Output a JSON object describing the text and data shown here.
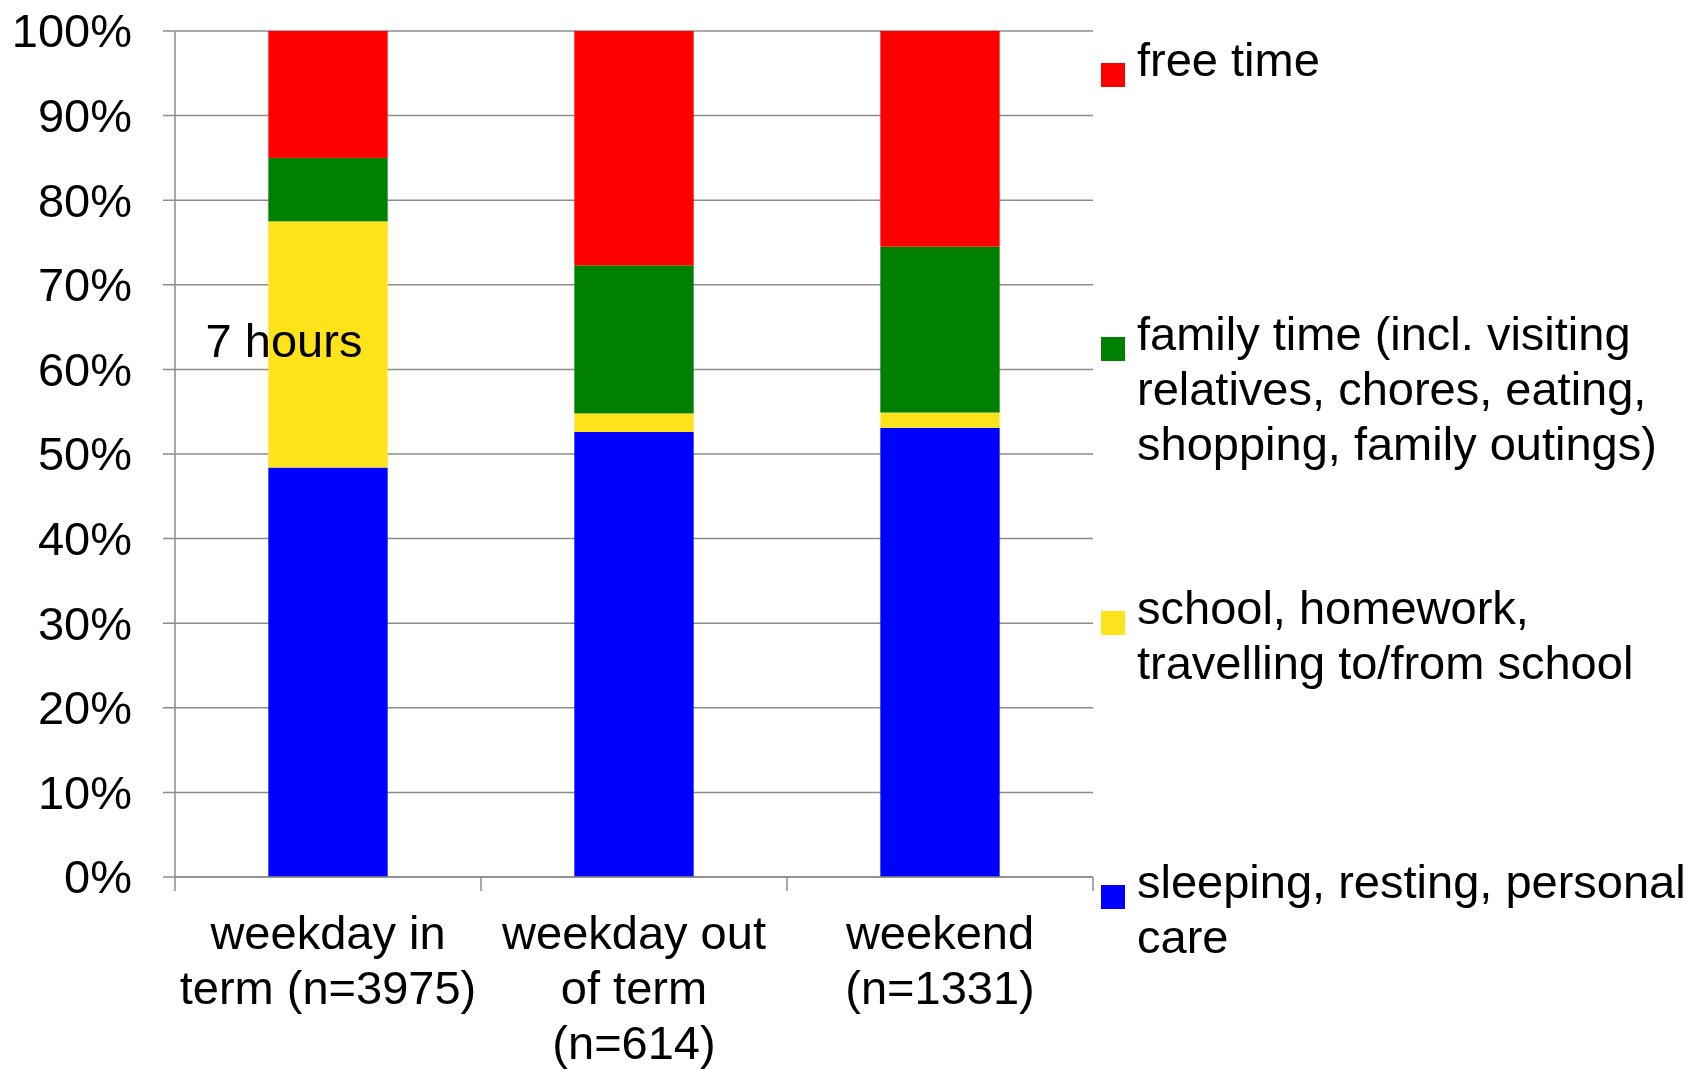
{
  "chart_data": {
    "type": "bar",
    "stacked": true,
    "categories": [
      "weekday in term (n=3975)",
      "weekday out of term (n=614)",
      "weekend (n=1331)"
    ],
    "series": [
      {
        "name": "sleeping, resting, personal care",
        "color": "#0000ff",
        "values": [
          48.4,
          52.6,
          53.1
        ]
      },
      {
        "name": "school, homework, travelling to/from school",
        "color": "#ffe31a",
        "values": [
          29.1,
          2.2,
          1.8
        ]
      },
      {
        "name": "family time (incl. visiting relatives, chores, eating, shopping, family outings)",
        "color": "#008000",
        "values": [
          7.5,
          17.5,
          19.6
        ]
      },
      {
        "name": "free time",
        "color": "#ff0000",
        "values": [
          15,
          27.7,
          25.5
        ]
      }
    ],
    "ylim": [
      0,
      100
    ],
    "yticks": [
      {
        "value": 0,
        "label": "0%"
      },
      {
        "value": 10,
        "label": "10%"
      },
      {
        "value": 20,
        "label": "20%"
      },
      {
        "value": 30,
        "label": "30%"
      },
      {
        "value": 40,
        "label": "40%"
      },
      {
        "value": 50,
        "label": "50%"
      },
      {
        "value": 60,
        "label": "60%"
      },
      {
        "value": 70,
        "label": "70%"
      },
      {
        "value": 80,
        "label": "80%"
      },
      {
        "value": 90,
        "label": "90%"
      },
      {
        "value": 100,
        "label": "100%"
      }
    ],
    "grid": "y",
    "legend": "right",
    "annotations": [
      "7 hours"
    ]
  }
}
